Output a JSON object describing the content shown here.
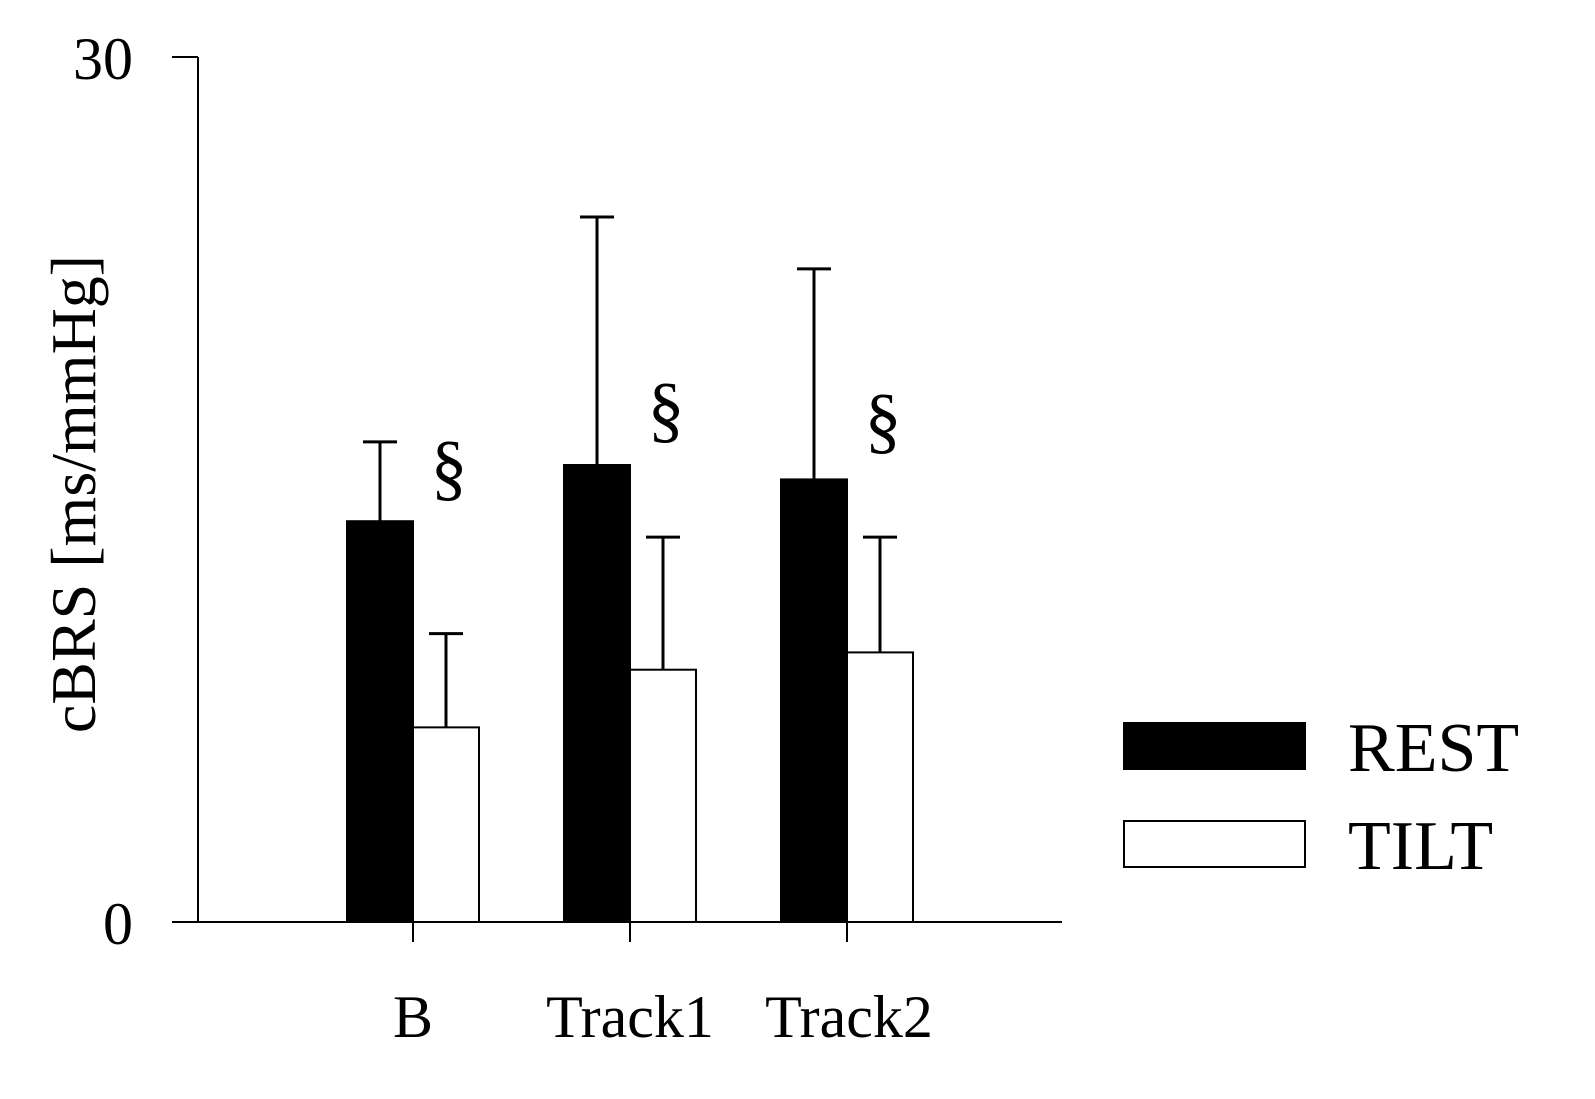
{
  "chart_data": {
    "type": "bar",
    "title": "",
    "xlabel": "",
    "ylabel": "cBRS [ms/mmHg]",
    "ylim": [
      0,
      30
    ],
    "yticks": [
      "0",
      "30"
    ],
    "categories": [
      "B",
      "Track1",
      "Track2"
    ],
    "series": [
      {
        "name": "REST",
        "color": "#000000",
        "values": [
          13.9,
          15.85,
          15.35
        ],
        "errors": [
          2.75,
          8.6,
          7.3
        ]
      },
      {
        "name": "TILT",
        "color": "#ffffff",
        "values": [
          6.75,
          8.75,
          9.35
        ],
        "errors": [
          3.25,
          4.6,
          4.0
        ]
      }
    ],
    "annotations": [
      {
        "category": "B",
        "text": "§"
      },
      {
        "category": "Track1",
        "text": "§"
      },
      {
        "category": "Track2",
        "text": "§"
      }
    ],
    "legend_position": "right",
    "grid": false
  }
}
